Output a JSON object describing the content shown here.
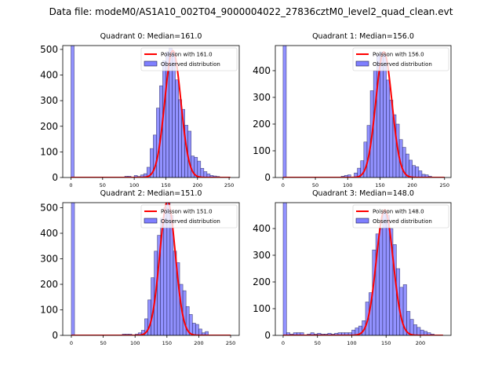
{
  "figure": {
    "suptitle": "Data file: modeM0/AS1A10_002T04_9000004022_27836cztM0_level2_quad_clean.evt"
  },
  "colors": {
    "bar_fill": "#7f7fff",
    "bar_edge": "#1a1a4d",
    "poisson": "#ff0000"
  },
  "chart_data": [
    {
      "type": "bar",
      "title": "Quadrant 0: Median=161.0",
      "bin_width": 5,
      "xlim": [
        -13,
        266
      ],
      "ylim": [
        0,
        515
      ],
      "xticks": [
        0,
        50,
        100,
        150,
        200,
        250
      ],
      "yticks": [
        0,
        100,
        200,
        300,
        400,
        500
      ],
      "legend": {
        "placement": "top-right",
        "entries": [
          "Poisson with 161.0",
          "Observed distribution"
        ]
      },
      "poisson": {
        "lambda": 161.0,
        "peak": 495,
        "x_range": [
          0,
          252
        ]
      },
      "bins": [
        [
          0,
          2000
        ],
        [
          85,
          5
        ],
        [
          90,
          5
        ],
        [
          100,
          8
        ],
        [
          105,
          4
        ],
        [
          110,
          10
        ],
        [
          115,
          15
        ],
        [
          120,
          40
        ],
        [
          125,
          113
        ],
        [
          130,
          166
        ],
        [
          135,
          271
        ],
        [
          140,
          358
        ],
        [
          145,
          456
        ],
        [
          150,
          490
        ],
        [
          155,
          505
        ],
        [
          160,
          490
        ],
        [
          165,
          381
        ],
        [
          170,
          304
        ],
        [
          175,
          266
        ],
        [
          180,
          204
        ],
        [
          185,
          181
        ],
        [
          190,
          84
        ],
        [
          195,
          79
        ],
        [
          200,
          64
        ],
        [
          205,
          36
        ],
        [
          210,
          23
        ],
        [
          215,
          14
        ],
        [
          220,
          8
        ],
        [
          225,
          6
        ],
        [
          230,
          4
        ]
      ]
    },
    {
      "type": "bar",
      "title": "Quadrant 1: Median=156.0",
      "bin_width": 5,
      "xlim": [
        -12,
        260
      ],
      "ylim": [
        0,
        494
      ],
      "xticks": [
        0,
        50,
        100,
        150,
        200,
        250
      ],
      "yticks": [
        0,
        100,
        200,
        300,
        400
      ],
      "legend": {
        "placement": "top-right",
        "entries": [
          "Poisson with 156.0",
          "Observed distribution"
        ]
      },
      "poisson": {
        "lambda": 156.0,
        "peak": 470,
        "x_range": [
          0,
          250
        ]
      },
      "bins": [
        [
          0,
          2000
        ],
        [
          90,
          5
        ],
        [
          95,
          8
        ],
        [
          100,
          10
        ],
        [
          110,
          17
        ],
        [
          115,
          35
        ],
        [
          120,
          63
        ],
        [
          125,
          133
        ],
        [
          130,
          195
        ],
        [
          135,
          325
        ],
        [
          140,
          400
        ],
        [
          145,
          460
        ],
        [
          150,
          470
        ],
        [
          155,
          460
        ],
        [
          160,
          365
        ],
        [
          165,
          290
        ],
        [
          170,
          235
        ],
        [
          175,
          200
        ],
        [
          180,
          142
        ],
        [
          185,
          113
        ],
        [
          190,
          88
        ],
        [
          195,
          65
        ],
        [
          200,
          45
        ],
        [
          205,
          40
        ],
        [
          210,
          25
        ],
        [
          215,
          12
        ],
        [
          220,
          10
        ],
        [
          225,
          5
        ]
      ]
    },
    {
      "type": "bar",
      "title": "Quadrant 2: Median=151.0",
      "bin_width": 5,
      "xlim": [
        -13.5,
        263.5
      ],
      "ylim": [
        0,
        520
      ],
      "xticks": [
        0,
        50,
        100,
        150,
        200,
        250
      ],
      "yticks": [
        0,
        100,
        200,
        300,
        400,
        500
      ],
      "legend": {
        "placement": "top-right",
        "entries": [
          "Poisson with 151.0",
          "Observed distribution"
        ]
      },
      "poisson": {
        "lambda": 151.0,
        "peak": 525,
        "x_range": [
          0,
          250
        ]
      },
      "bins": [
        [
          0,
          2000
        ],
        [
          80,
          5
        ],
        [
          85,
          5
        ],
        [
          90,
          5
        ],
        [
          100,
          5
        ],
        [
          105,
          10
        ],
        [
          110,
          20
        ],
        [
          115,
          65
        ],
        [
          120,
          139
        ],
        [
          125,
          226
        ],
        [
          130,
          330
        ],
        [
          135,
          392
        ],
        [
          140,
          459
        ],
        [
          145,
          500
        ],
        [
          150,
          520
        ],
        [
          155,
          470
        ],
        [
          160,
          330
        ],
        [
          165,
          285
        ],
        [
          170,
          200
        ],
        [
          175,
          175
        ],
        [
          180,
          113
        ],
        [
          185,
          82
        ],
        [
          190,
          48
        ],
        [
          195,
          43
        ],
        [
          200,
          25
        ],
        [
          205,
          10
        ],
        [
          210,
          15
        ]
      ]
    },
    {
      "type": "bar",
      "title": "Quadrant 3: Median=148.0",
      "bin_width": 5,
      "xlim": [
        -11.4,
        244.6
      ],
      "ylim": [
        0,
        497
      ],
      "xticks": [
        0,
        50,
        100,
        150,
        200
      ],
      "yticks": [
        0,
        100,
        200,
        300,
        400
      ],
      "legend": {
        "placement": "top-right",
        "entries": [
          "Poisson with 148.0",
          "Observed distribution"
        ]
      },
      "poisson": {
        "lambda": 148.0,
        "peak": 470,
        "x_range": [
          0,
          233
        ]
      },
      "bins": [
        [
          0,
          2000
        ],
        [
          5,
          10
        ],
        [
          10,
          5
        ],
        [
          15,
          10
        ],
        [
          20,
          10
        ],
        [
          25,
          10
        ],
        [
          35,
          5
        ],
        [
          40,
          10
        ],
        [
          45,
          5
        ],
        [
          50,
          8
        ],
        [
          55,
          5
        ],
        [
          60,
          5
        ],
        [
          65,
          8
        ],
        [
          70,
          5
        ],
        [
          75,
          8
        ],
        [
          80,
          10
        ],
        [
          85,
          10
        ],
        [
          90,
          10
        ],
        [
          95,
          10
        ],
        [
          100,
          20
        ],
        [
          105,
          28
        ],
        [
          110,
          35
        ],
        [
          115,
          55
        ],
        [
          120,
          125
        ],
        [
          125,
          160
        ],
        [
          130,
          320
        ],
        [
          135,
          380
        ],
        [
          140,
          400
        ],
        [
          145,
          460
        ],
        [
          150,
          450
        ],
        [
          155,
          400
        ],
        [
          160,
          340
        ],
        [
          165,
          250
        ],
        [
          170,
          180
        ],
        [
          175,
          190
        ],
        [
          180,
          90
        ],
        [
          185,
          60
        ],
        [
          190,
          40
        ],
        [
          195,
          30
        ],
        [
          200,
          20
        ],
        [
          205,
          15
        ],
        [
          210,
          10
        ],
        [
          215,
          5
        ]
      ]
    }
  ]
}
